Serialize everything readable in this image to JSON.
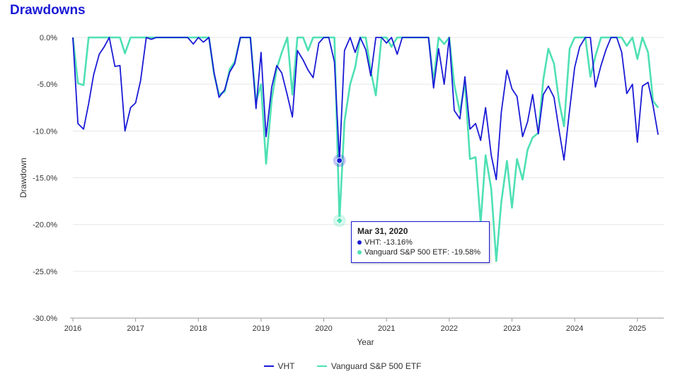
{
  "title": "Drawdowns",
  "colors": {
    "vht": "#1a1ad6",
    "voo": "#4fe0b4",
    "grid": "#e6e6e6",
    "axis": "#999999"
  },
  "tooltip": {
    "date": "Mar 31, 2020",
    "row1": "VHT: -13.16%",
    "row2": "Vanguard S&P 500 ETF: -19.58%"
  },
  "legend": {
    "s1": "VHT",
    "s2": "Vanguard S&P 500 ETF"
  },
  "chart_data": {
    "type": "line",
    "title": "Drawdowns",
    "xlabel": "Year",
    "ylabel": "Drawdown",
    "xlim": [
      2016.0,
      2025.33
    ],
    "ylim": [
      -30,
      0
    ],
    "y_ticks": [
      0,
      -5,
      -10,
      -15,
      -20,
      -25,
      -30
    ],
    "y_tick_labels": [
      "0.0%",
      "-5.0%",
      "-10.0%",
      "-15.0%",
      "-20.0%",
      "-25.0%",
      "-30.0%"
    ],
    "x_ticks": [
      2016,
      2017,
      2018,
      2019,
      2020,
      2021,
      2022,
      2023,
      2024,
      2025
    ],
    "x_tick_labels": [
      "2016",
      "2017",
      "2018",
      "2019",
      "2020",
      "2021",
      "2022",
      "2023",
      "2024",
      "2025"
    ],
    "grid": true,
    "legend_position": "bottom",
    "series": [
      {
        "name": "VHT",
        "points": [
          [
            2016.0,
            0
          ],
          [
            2016.08,
            -9.2
          ],
          [
            2016.17,
            -9.8
          ],
          [
            2016.25,
            -7.1
          ],
          [
            2016.33,
            -4.0
          ],
          [
            2016.42,
            -1.8
          ],
          [
            2016.5,
            -1.0
          ],
          [
            2016.58,
            0
          ],
          [
            2016.67,
            -3.1
          ],
          [
            2016.75,
            -3.0
          ],
          [
            2016.83,
            -10.0
          ],
          [
            2016.92,
            -7.5
          ],
          [
            2017.0,
            -7.0
          ],
          [
            2017.08,
            -4.6
          ],
          [
            2017.17,
            0
          ],
          [
            2017.25,
            -0.2
          ],
          [
            2017.33,
            0
          ],
          [
            2017.42,
            0
          ],
          [
            2017.5,
            0
          ],
          [
            2017.58,
            0
          ],
          [
            2017.67,
            0
          ],
          [
            2017.75,
            0
          ],
          [
            2017.83,
            0
          ],
          [
            2017.92,
            -0.7
          ],
          [
            2018.0,
            0
          ],
          [
            2018.08,
            -0.5
          ],
          [
            2018.17,
            0
          ],
          [
            2018.25,
            -3.7
          ],
          [
            2018.33,
            -6.4
          ],
          [
            2018.42,
            -5.6
          ],
          [
            2018.5,
            -3.7
          ],
          [
            2018.58,
            -2.8
          ],
          [
            2018.67,
            0
          ],
          [
            2018.75,
            0
          ],
          [
            2018.83,
            0
          ],
          [
            2018.92,
            -7.6
          ],
          [
            2019.0,
            -1.6
          ],
          [
            2019.08,
            -10.6
          ],
          [
            2019.17,
            -5.3
          ],
          [
            2019.25,
            -3.0
          ],
          [
            2019.33,
            -3.8
          ],
          [
            2019.42,
            -6.2
          ],
          [
            2019.5,
            -8.5
          ],
          [
            2019.58,
            -1.4
          ],
          [
            2019.67,
            -2.4
          ],
          [
            2019.75,
            -3.5
          ],
          [
            2019.83,
            -4.3
          ],
          [
            2019.92,
            -0.6
          ],
          [
            2020.0,
            0
          ],
          [
            2020.08,
            0
          ],
          [
            2020.17,
            -2.6
          ],
          [
            2020.25,
            -13.16
          ],
          [
            2020.33,
            -1.4
          ],
          [
            2020.42,
            0
          ],
          [
            2020.5,
            -1.6
          ],
          [
            2020.58,
            0
          ],
          [
            2020.67,
            -1.3
          ],
          [
            2020.75,
            -4.1
          ],
          [
            2020.83,
            0
          ],
          [
            2020.92,
            0
          ],
          [
            2021.0,
            -0.6
          ],
          [
            2021.08,
            0
          ],
          [
            2021.17,
            -1.8
          ],
          [
            2021.25,
            0
          ],
          [
            2021.33,
            0
          ],
          [
            2021.42,
            0
          ],
          [
            2021.5,
            0
          ],
          [
            2021.58,
            0
          ],
          [
            2021.67,
            0
          ],
          [
            2021.75,
            -5.4
          ],
          [
            2021.83,
            -1.2
          ],
          [
            2021.92,
            -5.0
          ],
          [
            2022.0,
            0
          ],
          [
            2022.08,
            -7.8
          ],
          [
            2022.17,
            -8.7
          ],
          [
            2022.25,
            -4.2
          ],
          [
            2022.33,
            -9.8
          ],
          [
            2022.42,
            -9.2
          ],
          [
            2022.5,
            -11.0
          ],
          [
            2022.58,
            -7.5
          ],
          [
            2022.67,
            -12.6
          ],
          [
            2022.75,
            -15.2
          ],
          [
            2022.83,
            -8.0
          ],
          [
            2022.92,
            -3.5
          ],
          [
            2023.0,
            -5.5
          ],
          [
            2023.08,
            -6.3
          ],
          [
            2023.17,
            -10.6
          ],
          [
            2023.25,
            -9.0
          ],
          [
            2023.33,
            -6.1
          ],
          [
            2023.42,
            -10.3
          ],
          [
            2023.5,
            -6.1
          ],
          [
            2023.58,
            -5.2
          ],
          [
            2023.67,
            -6.4
          ],
          [
            2023.75,
            -9.9
          ],
          [
            2023.83,
            -13.1
          ],
          [
            2023.92,
            -7.7
          ],
          [
            2024.0,
            -3.2
          ],
          [
            2024.08,
            -1.0
          ],
          [
            2024.17,
            0
          ],
          [
            2024.25,
            0
          ],
          [
            2024.33,
            -5.3
          ],
          [
            2024.42,
            -3.0
          ],
          [
            2024.5,
            -1.3
          ],
          [
            2024.58,
            0
          ],
          [
            2024.67,
            0
          ],
          [
            2024.75,
            -1.6
          ],
          [
            2024.83,
            -6.0
          ],
          [
            2024.92,
            -5.0
          ],
          [
            2025.0,
            -11.2
          ],
          [
            2025.08,
            -5.2
          ],
          [
            2025.17,
            -4.8
          ],
          [
            2025.25,
            -7.3
          ],
          [
            2025.33,
            -10.4
          ]
        ]
      },
      {
        "name": "Vanguard S&P 500 ETF",
        "points": [
          [
            2016.0,
            0
          ],
          [
            2016.08,
            -4.9
          ],
          [
            2016.17,
            -5.1
          ],
          [
            2016.25,
            0
          ],
          [
            2016.33,
            0
          ],
          [
            2016.42,
            0
          ],
          [
            2016.5,
            0
          ],
          [
            2016.58,
            0
          ],
          [
            2016.67,
            0
          ],
          [
            2016.75,
            0
          ],
          [
            2016.83,
            -1.7
          ],
          [
            2016.92,
            0
          ],
          [
            2017.0,
            0
          ],
          [
            2017.08,
            0
          ],
          [
            2017.17,
            0
          ],
          [
            2017.25,
            0
          ],
          [
            2017.33,
            0
          ],
          [
            2017.42,
            0
          ],
          [
            2017.5,
            0
          ],
          [
            2017.58,
            0
          ],
          [
            2017.67,
            0
          ],
          [
            2017.75,
            0
          ],
          [
            2017.83,
            0
          ],
          [
            2017.92,
            0
          ],
          [
            2018.0,
            0
          ],
          [
            2018.08,
            0
          ],
          [
            2018.17,
            0
          ],
          [
            2018.25,
            -3.9
          ],
          [
            2018.33,
            -6.1
          ],
          [
            2018.42,
            -5.8
          ],
          [
            2018.5,
            -3.4
          ],
          [
            2018.58,
            -2.6
          ],
          [
            2018.67,
            0
          ],
          [
            2018.75,
            0
          ],
          [
            2018.83,
            0
          ],
          [
            2018.92,
            -6.9
          ],
          [
            2019.0,
            -5.0
          ],
          [
            2019.08,
            -13.5
          ],
          [
            2019.17,
            -6.6
          ],
          [
            2019.25,
            -3.3
          ],
          [
            2019.33,
            -1.6
          ],
          [
            2019.42,
            0
          ],
          [
            2019.5,
            -6.1
          ],
          [
            2019.58,
            0
          ],
          [
            2019.67,
            0
          ],
          [
            2019.75,
            -1.4
          ],
          [
            2019.83,
            0
          ],
          [
            2019.92,
            0
          ],
          [
            2020.0,
            0
          ],
          [
            2020.08,
            0
          ],
          [
            2020.17,
            0
          ],
          [
            2020.25,
            -19.58
          ],
          [
            2020.33,
            -9.0
          ],
          [
            2020.42,
            -5.0
          ],
          [
            2020.5,
            -3.2
          ],
          [
            2020.58,
            0
          ],
          [
            2020.67,
            0
          ],
          [
            2020.75,
            -3.6
          ],
          [
            2020.83,
            -6.2
          ],
          [
            2020.92,
            0
          ],
          [
            2021.0,
            0
          ],
          [
            2021.08,
            -1.0
          ],
          [
            2021.17,
            0
          ],
          [
            2021.25,
            0
          ],
          [
            2021.33,
            0
          ],
          [
            2021.42,
            0
          ],
          [
            2021.5,
            0
          ],
          [
            2021.58,
            0
          ],
          [
            2021.67,
            0
          ],
          [
            2021.75,
            -4.7
          ],
          [
            2021.83,
            0
          ],
          [
            2021.92,
            -0.7
          ],
          [
            2022.0,
            0
          ],
          [
            2022.08,
            -5.0
          ],
          [
            2022.17,
            -8.0
          ],
          [
            2022.25,
            -4.8
          ],
          [
            2022.33,
            -13.0
          ],
          [
            2022.42,
            -12.8
          ],
          [
            2022.5,
            -19.8
          ],
          [
            2022.58,
            -12.6
          ],
          [
            2022.67,
            -16.2
          ],
          [
            2022.75,
            -23.9
          ],
          [
            2022.83,
            -17.6
          ],
          [
            2022.92,
            -13.2
          ],
          [
            2023.0,
            -18.2
          ],
          [
            2023.08,
            -13.0
          ],
          [
            2023.17,
            -15.2
          ],
          [
            2023.25,
            -12.0
          ],
          [
            2023.33,
            -10.7
          ],
          [
            2023.42,
            -10.2
          ],
          [
            2023.5,
            -4.5
          ],
          [
            2023.58,
            -1.2
          ],
          [
            2023.67,
            -2.8
          ],
          [
            2023.75,
            -6.8
          ],
          [
            2023.83,
            -9.5
          ],
          [
            2023.92,
            -1.2
          ],
          [
            2024.0,
            0
          ],
          [
            2024.08,
            0
          ],
          [
            2024.17,
            0
          ],
          [
            2024.25,
            -4.2
          ],
          [
            2024.33,
            -2.0
          ],
          [
            2024.42,
            0
          ],
          [
            2024.5,
            0
          ],
          [
            2024.58,
            0
          ],
          [
            2024.67,
            0
          ],
          [
            2024.75,
            0
          ],
          [
            2024.83,
            -0.9
          ],
          [
            2024.92,
            0
          ],
          [
            2025.0,
            -2.3
          ],
          [
            2025.08,
            0
          ],
          [
            2025.17,
            -1.6
          ],
          [
            2025.25,
            -6.8
          ],
          [
            2025.33,
            -7.5
          ]
        ]
      }
    ]
  }
}
